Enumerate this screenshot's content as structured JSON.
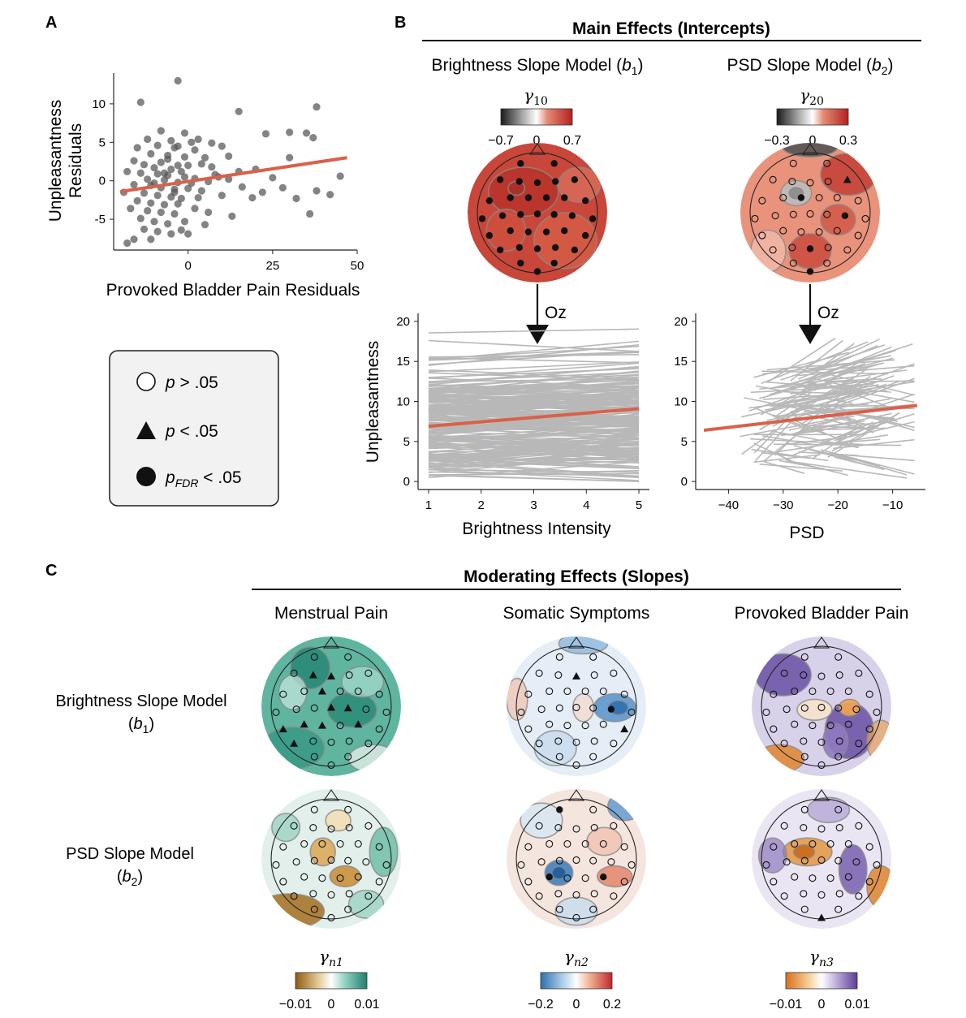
{
  "panels": {
    "a": "A",
    "b": "B",
    "c": "C"
  },
  "colors": {
    "accent_line": "#d9614a",
    "points": "#555555",
    "gray_lines": "#b8b8b8",
    "legend_bg": "#f2f2f2"
  },
  "main_effects": {
    "header": "Main Effects (Intercepts)",
    "left": {
      "title_pre": "Brightness Slope Model (",
      "title_var": "b",
      "title_sub": "1",
      "title_post": ")",
      "gamma_symbol": "γ",
      "gamma_sub": "10",
      "ticks": [
        "−0.7",
        "0",
        "0.7"
      ],
      "arrow_label": "Oz"
    },
    "right": {
      "title_pre": "PSD Slope Model (",
      "title_var": "b",
      "title_sub": "2",
      "title_post": ")",
      "gamma_symbol": "γ",
      "gamma_sub": "20",
      "ticks": [
        "−0.3",
        "0",
        "0.3"
      ],
      "arrow_label": "Oz"
    }
  },
  "legend": {
    "items": [
      {
        "icon": "open-circle-icon",
        "label_var": "p",
        "label_sub": "",
        "label_rest": " > .05"
      },
      {
        "icon": "triangle-icon",
        "label_var": "p",
        "label_sub": "",
        "label_rest": " < .05"
      },
      {
        "icon": "filled-circle-icon",
        "label_var": "p",
        "label_sub": "FDR",
        "label_rest": " < .05"
      }
    ]
  },
  "moderating_effects": {
    "header": "Moderating Effects (Slopes)",
    "columns": [
      "Menstrual Pain",
      "Somatic Symptoms",
      "Provoked Bladder Pain"
    ],
    "rows": [
      {
        "line1": "Brightness Slope Model",
        "var": "b",
        "sub": "1"
      },
      {
        "line1": "PSD Slope Model",
        "var": "b",
        "sub": "2"
      }
    ],
    "colorbars": [
      {
        "gamma_symbol": "γ",
        "gamma_sub": "n1",
        "ticks": [
          "−0.01",
          "0",
          "0.01"
        ],
        "low": "#8c5a14",
        "high": "#1f7f6e"
      },
      {
        "gamma_symbol": "γ",
        "gamma_sub": "n2",
        "ticks": [
          "−0.2",
          "0",
          "0.2"
        ],
        "low": "#2a6fb0",
        "high": "#c0282d"
      },
      {
        "gamma_symbol": "γ",
        "gamma_sub": "n3",
        "ticks": [
          "−0.01",
          "0",
          "0.01"
        ],
        "low": "#d9701a",
        "high": "#5b3d97"
      }
    ]
  },
  "chart_data": [
    {
      "type": "scatter",
      "panel": "A",
      "title": "",
      "xlabel": "Provoked Bladder Pain Residuals",
      "ylabel_lines": [
        "Unpleasantness",
        "Residuals"
      ],
      "xlim": [
        -22,
        50
      ],
      "ylim": [
        -9,
        14
      ],
      "xticks": [
        0,
        25,
        50
      ],
      "yticks": [
        -5,
        0,
        5,
        10
      ],
      "grid": false,
      "points": [
        [
          -3,
          13
        ],
        [
          -14,
          10.2
        ],
        [
          15,
          9
        ],
        [
          38,
          9.6
        ],
        [
          30,
          6.3
        ],
        [
          35,
          6.2
        ],
        [
          -8,
          6.5
        ],
        [
          -1,
          6.2
        ],
        [
          3,
          5.4
        ],
        [
          23,
          6.1
        ],
        [
          37,
          5.6
        ],
        [
          -12,
          5.4
        ],
        [
          -5,
          5.2
        ],
        [
          1,
          5.0
        ],
        [
          7,
          4.9
        ],
        [
          -9,
          4.6
        ],
        [
          -15,
          4.3
        ],
        [
          10,
          4.5
        ],
        [
          -4,
          4.3
        ],
        [
          2,
          4.0
        ],
        [
          -11,
          3.5
        ],
        [
          -6,
          3.3
        ],
        [
          -1,
          3.1
        ],
        [
          5,
          3.0
        ],
        [
          12,
          3.2
        ],
        [
          30,
          3.0
        ],
        [
          -16,
          2.6
        ],
        [
          -8,
          2.4
        ],
        [
          -3,
          2.0
        ],
        [
          -13,
          2.1
        ],
        [
          0,
          2.0
        ],
        [
          4,
          2.2
        ],
        [
          7,
          1.8
        ],
        [
          -10,
          1.7
        ],
        [
          -5,
          1.5
        ],
        [
          -2,
          1.2
        ],
        [
          20,
          1.5
        ],
        [
          -18,
          1.2
        ],
        [
          -14,
          1.0
        ],
        [
          -9,
          0.9
        ],
        [
          -6,
          0.7
        ],
        [
          -1,
          0.5
        ],
        [
          2,
          0.3
        ],
        [
          8,
          0.8
        ],
        [
          -12,
          0.2
        ],
        [
          -7,
          0.1
        ],
        [
          -3,
          -0.2
        ],
        [
          1,
          -0.3
        ],
        [
          6,
          -0.1
        ],
        [
          12,
          0.2
        ],
        [
          25,
          0.4
        ],
        [
          45,
          0.6
        ],
        [
          -16,
          -0.5
        ],
        [
          -11,
          -0.6
        ],
        [
          -8,
          -0.9
        ],
        [
          -4,
          -1.1
        ],
        [
          0,
          -1.0
        ],
        [
          4,
          -1.3
        ],
        [
          16,
          -0.8
        ],
        [
          28,
          -0.9
        ],
        [
          38,
          -1.3
        ],
        [
          -19,
          -1.5
        ],
        [
          -13,
          -1.6
        ],
        [
          -9,
          -1.9
        ],
        [
          -5,
          -2.1
        ],
        [
          -2,
          -2.3
        ],
        [
          3,
          -2.2
        ],
        [
          10,
          -1.9
        ],
        [
          22,
          -1.5
        ],
        [
          32,
          -2.3
        ],
        [
          42,
          -1.8
        ],
        [
          -15,
          -2.6
        ],
        [
          -11,
          -2.9
        ],
        [
          -7,
          -3.1
        ],
        [
          -3,
          -3.0
        ],
        [
          -17,
          -3.6
        ],
        [
          -12,
          -3.9
        ],
        [
          -8,
          -4.1
        ],
        [
          -4,
          -4.3
        ],
        [
          2,
          -3.6
        ],
        [
          6,
          -4.1
        ],
        [
          13,
          -4.6
        ],
        [
          36,
          -4.3
        ],
        [
          -14,
          -4.9
        ],
        [
          -10,
          -5.3
        ],
        [
          -6,
          -5.6
        ],
        [
          -1,
          -5.3
        ],
        [
          5,
          -5.7
        ],
        [
          -13,
          -6.3
        ],
        [
          -9,
          -6.6
        ],
        [
          -5,
          -6.9
        ],
        [
          0,
          -6.9
        ],
        [
          -16,
          -7.6
        ],
        [
          -11,
          -7.6
        ],
        [
          -18,
          -8.1
        ],
        [
          -2,
          -6.4
        ],
        [
          19,
          -2.2
        ],
        [
          -6,
          2.8
        ],
        [
          -3,
          4.5
        ],
        [
          9,
          0.5
        ],
        [
          15,
          1.2
        ],
        [
          -10,
          -0.3
        ],
        [
          -7,
          1.0
        ],
        [
          -4,
          -1.5
        ]
      ],
      "fit_line": {
        "x": [
          -20,
          47
        ],
        "y": [
          -1.4,
          3.0
        ],
        "color": "#d9614a"
      }
    },
    {
      "type": "line",
      "panel": "B-left",
      "title": "",
      "xlabel": "Brightness Intensity",
      "ylabel": "Unpleasantness",
      "xlim": [
        0.8,
        5.2
      ],
      "ylim": [
        -1,
        21
      ],
      "xticks": [
        1,
        2,
        3,
        4,
        5
      ],
      "yticks": [
        0,
        5,
        10,
        15,
        20
      ],
      "grid": false,
      "series": [
        {
          "name": "",
          "kind": "individual-fits",
          "count": 220,
          "color": "#b8b8b8"
        },
        {
          "name": "",
          "kind": "group-fit",
          "x": [
            1,
            5
          ],
          "y": [
            6.9,
            9.1
          ],
          "color": "#d9614a"
        }
      ]
    },
    {
      "type": "line",
      "panel": "B-right",
      "title": "",
      "xlabel": "PSD",
      "ylabel": "",
      "xlim": [
        -46,
        -4
      ],
      "ylim": [
        -1,
        21
      ],
      "xticks": [
        -40,
        -30,
        -20,
        -10
      ],
      "yticks": [
        0,
        5,
        10,
        15,
        20
      ],
      "grid": false,
      "series": [
        {
          "name": "",
          "kind": "individual-fits",
          "count": 130,
          "color": "#b8b8b8"
        },
        {
          "name": "",
          "kind": "group-fit",
          "x": [
            -44.5,
            -5.5
          ],
          "y": [
            6.4,
            9.5
          ],
          "color": "#d9614a"
        }
      ]
    },
    {
      "type": "heatmap",
      "panel": "B/C topographic maps",
      "maps": [
        {
          "row": "intercept",
          "model": "Brightness Slope Model",
          "scale": "γ10",
          "range": [
            -0.7,
            0.7
          ]
        },
        {
          "row": "intercept",
          "model": "PSD Slope Model",
          "scale": "γ20",
          "range": [
            -0.3,
            0.3
          ]
        },
        {
          "row": "Brightness Slope Model",
          "column": "Menstrual Pain",
          "scale": "γn1",
          "range": [
            -0.01,
            0.01
          ]
        },
        {
          "row": "Brightness Slope Model",
          "column": "Somatic Symptoms",
          "scale": "γn2",
          "range": [
            -0.2,
            0.2
          ]
        },
        {
          "row": "Brightness Slope Model",
          "column": "Provoked Bladder Pain",
          "scale": "γn3",
          "range": [
            -0.01,
            0.01
          ]
        },
        {
          "row": "PSD Slope Model",
          "column": "Menstrual Pain",
          "scale": "γn1",
          "range": [
            -0.01,
            0.01
          ]
        },
        {
          "row": "PSD Slope Model",
          "column": "Somatic Symptoms",
          "scale": "γn2",
          "range": [
            -0.2,
            0.2
          ]
        },
        {
          "row": "PSD Slope Model",
          "column": "Provoked Bladder Pain",
          "scale": "γn3",
          "range": [
            -0.01,
            0.01
          ]
        }
      ]
    }
  ]
}
